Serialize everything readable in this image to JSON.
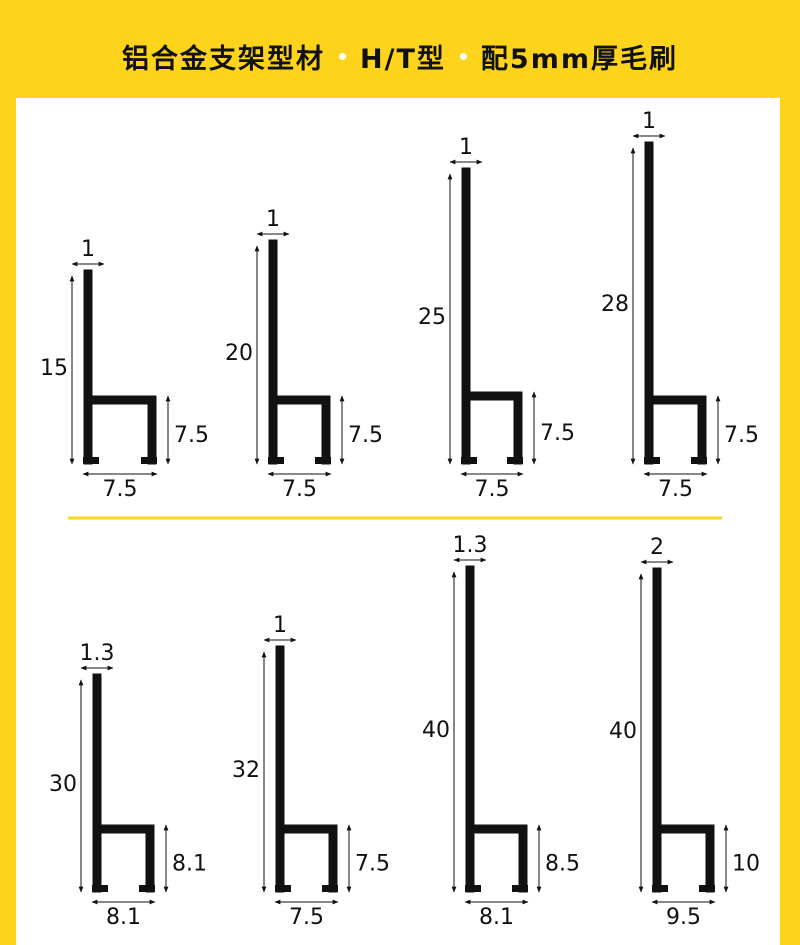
{
  "banner": {
    "part1": "铝合金支架型材",
    "part2": "H/T型",
    "part3": "配5mm厚毛刷"
  },
  "profiles": [
    {
      "thickness": "1",
      "height": "15",
      "leg": "7.5",
      "width": "7.5"
    },
    {
      "thickness": "1",
      "height": "20",
      "leg": "7.5",
      "width": "7.5"
    },
    {
      "thickness": "1",
      "height": "25",
      "leg": "7.5",
      "width": "7.5"
    },
    {
      "thickness": "1",
      "height": "28",
      "leg": "7.5",
      "width": "7.5"
    },
    {
      "thickness": "1.3",
      "height": "30",
      "leg": "8.1",
      "width": "8.1"
    },
    {
      "thickness": "1",
      "height": "32",
      "leg": "7.5",
      "width": "7.5"
    },
    {
      "thickness": "1.3",
      "height": "40",
      "leg": "8.5",
      "width": "8.1"
    },
    {
      "thickness": "2",
      "height": "40",
      "leg": "10",
      "width": "9.5"
    }
  ],
  "colors": {
    "brand_yellow": "#fdd41b",
    "profile": "#111111",
    "background": "#ffffff"
  }
}
